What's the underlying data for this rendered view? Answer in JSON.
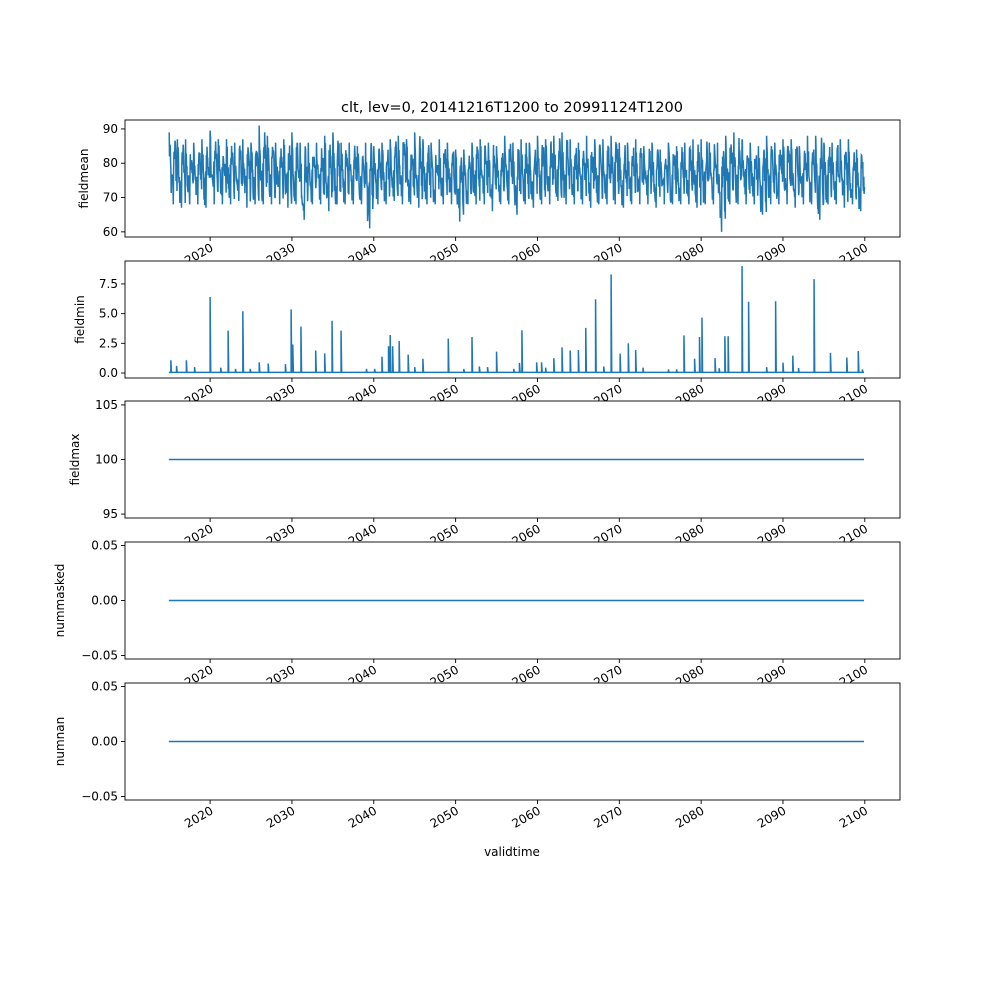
{
  "chart_data": {
    "type": "line",
    "title": "clt, lev=0, 20141216T1200 to 20991124T1200",
    "xlabel": "validtime",
    "xlim": [
      2009.6,
      2104.3
    ],
    "xticks": [
      2020,
      2030,
      2040,
      2050,
      2060,
      2070,
      2080,
      2090,
      2100
    ],
    "xtick_labels": [
      "2020",
      "2030",
      "2040",
      "2050",
      "2060",
      "2070",
      "2080",
      "2090",
      "2100"
    ],
    "line_color": "#1f77b4",
    "panels": [
      {
        "ylabel": "fieldmean",
        "ylim": [
          58.5,
          92.6
        ],
        "yticks": [
          60,
          70,
          80,
          90
        ],
        "ytick_labels": [
          "60",
          "70",
          "80",
          "90"
        ],
        "kind": "seasonal_envelope",
        "start_year": 2015,
        "mean": 77,
        "annual_max": [
          89,
          87,
          87,
          86,
          87,
          89.5,
          87,
          87,
          86,
          87,
          86,
          91,
          88,
          86,
          87,
          89,
          86,
          86,
          86,
          88,
          89,
          86,
          86,
          85,
          86,
          85,
          86,
          87,
          88,
          87,
          89,
          87,
          86,
          87,
          86,
          84,
          84,
          86,
          87,
          86,
          85,
          88,
          86,
          87,
          86,
          88,
          87,
          88,
          89,
          87,
          86,
          88,
          87,
          87,
          88,
          86,
          86,
          87,
          85,
          86,
          84,
          86,
          85,
          86,
          87,
          87,
          86,
          86,
          88,
          89,
          87,
          86,
          85,
          88,
          86,
          87,
          87,
          85,
          88,
          88,
          86,
          86,
          87,
          87,
          84
        ],
        "annual_min": [
          68,
          67,
          68,
          68,
          67,
          68,
          68,
          68,
          69,
          67,
          68,
          68,
          68,
          68,
          67,
          68,
          63.5,
          68,
          68,
          66,
          68,
          68,
          68,
          68,
          61,
          68,
          68,
          69,
          68,
          68,
          67,
          68,
          68,
          68,
          68,
          63,
          68,
          68,
          68,
          66,
          68,
          68,
          65,
          68,
          67,
          68,
          68,
          69,
          68,
          68,
          68,
          67,
          68,
          68,
          68,
          67,
          68,
          68,
          68,
          67,
          68,
          68,
          68,
          68,
          67,
          68,
          68,
          60,
          68,
          68,
          68,
          68,
          65,
          68,
          68,
          68,
          67,
          68,
          68,
          63.5,
          68,
          68,
          67,
          68,
          66
        ]
      },
      {
        "ylabel": "fieldmin",
        "ylim": [
          -0.42,
          9.43
        ],
        "yticks": [
          0,
          2.5,
          5,
          7.5
        ],
        "ytick_labels": [
          "0.0",
          "2.5",
          "5.0",
          "7.5"
        ],
        "kind": "spikes",
        "baseline": 0.05,
        "start_year": 2014.96,
        "end_year": 2099.9,
        "spikes": [
          [
            2015.2,
            1.07
          ],
          [
            2015.9,
            0.6
          ],
          [
            2017.1,
            1.07
          ],
          [
            2018.1,
            0.5
          ],
          [
            2020.0,
            6.4
          ],
          [
            2021.3,
            0.45
          ],
          [
            2022.2,
            3.57
          ],
          [
            2023.1,
            0.35
          ],
          [
            2024.0,
            5.2
          ],
          [
            2024.9,
            0.35
          ],
          [
            2026.0,
            0.9
          ],
          [
            2027.1,
            0.8
          ],
          [
            2029.2,
            0.75
          ],
          [
            2029.9,
            5.36
          ],
          [
            2030.1,
            2.4
          ],
          [
            2031.1,
            3.9
          ],
          [
            2032.9,
            1.9
          ],
          [
            2034.0,
            1.65
          ],
          [
            2034.9,
            4.4
          ],
          [
            2036.0,
            3.57
          ],
          [
            2039.1,
            0.35
          ],
          [
            2040.1,
            0.35
          ],
          [
            2041.0,
            1.38
          ],
          [
            2041.8,
            2.25
          ],
          [
            2042.0,
            3.2
          ],
          [
            2042.3,
            2.25
          ],
          [
            2043.1,
            2.7
          ],
          [
            2044.2,
            1.55
          ],
          [
            2045.0,
            0.5
          ],
          [
            2046.0,
            1.2
          ],
          [
            2049.1,
            2.9
          ],
          [
            2051.0,
            0.35
          ],
          [
            2052.0,
            3.03
          ],
          [
            2052.9,
            0.55
          ],
          [
            2053.9,
            0.5
          ],
          [
            2055.0,
            1.8
          ],
          [
            2057.1,
            0.35
          ],
          [
            2057.8,
            0.85
          ],
          [
            2058.1,
            3.6
          ],
          [
            2059.9,
            0.9
          ],
          [
            2060.5,
            0.9
          ],
          [
            2061.0,
            0.45
          ],
          [
            2062.0,
            1.25
          ],
          [
            2063.0,
            2.16
          ],
          [
            2064.0,
            1.9
          ],
          [
            2065.0,
            1.94
          ],
          [
            2065.9,
            3.8
          ],
          [
            2067.1,
            6.2
          ],
          [
            2068.1,
            0.55
          ],
          [
            2069.0,
            8.3
          ],
          [
            2070.1,
            1.63
          ],
          [
            2071.1,
            2.5
          ],
          [
            2072.0,
            1.94
          ],
          [
            2072.9,
            0.45
          ],
          [
            2076.0,
            0.3
          ],
          [
            2077.0,
            0.3
          ],
          [
            2077.9,
            3.17
          ],
          [
            2079.2,
            1.2
          ],
          [
            2079.8,
            3.03
          ],
          [
            2080.1,
            4.66
          ],
          [
            2081.7,
            1.25
          ],
          [
            2082.2,
            0.4
          ],
          [
            2082.9,
            3.1
          ],
          [
            2083.3,
            3.1
          ],
          [
            2085.0,
            9.0
          ],
          [
            2085.8,
            6.0
          ],
          [
            2088.0,
            0.5
          ],
          [
            2089.1,
            6.04
          ],
          [
            2090.0,
            0.87
          ],
          [
            2091.2,
            1.46
          ],
          [
            2091.9,
            0.42
          ],
          [
            2093.8,
            7.9
          ],
          [
            2095.8,
            1.7
          ],
          [
            2097.8,
            1.3
          ],
          [
            2099.2,
            1.85
          ],
          [
            2099.7,
            0.3
          ]
        ]
      },
      {
        "ylabel": "fieldmax",
        "ylim": [
          94.64,
          105.36
        ],
        "yticks": [
          95,
          100,
          105
        ],
        "ytick_labels": [
          "95",
          "100",
          "105"
        ],
        "kind": "constant",
        "value": 100,
        "start_year": 2014.96,
        "end_year": 2099.9
      },
      {
        "ylabel": "nummasked",
        "ylim": [
          -0.0532,
          0.0532
        ],
        "yticks": [
          -0.05,
          0,
          0.05
        ],
        "ytick_labels": [
          "−0.05",
          "0.00",
          "0.05"
        ],
        "kind": "constant",
        "value": 0,
        "start_year": 2014.96,
        "end_year": 2099.9
      },
      {
        "ylabel": "numnan",
        "ylim": [
          -0.0532,
          0.0532
        ],
        "yticks": [
          -0.05,
          0,
          0.05
        ],
        "ytick_labels": [
          "−0.05",
          "0.00",
          "0.05"
        ],
        "kind": "constant",
        "value": 0,
        "start_year": 2014.96,
        "end_year": 2099.9
      }
    ]
  }
}
